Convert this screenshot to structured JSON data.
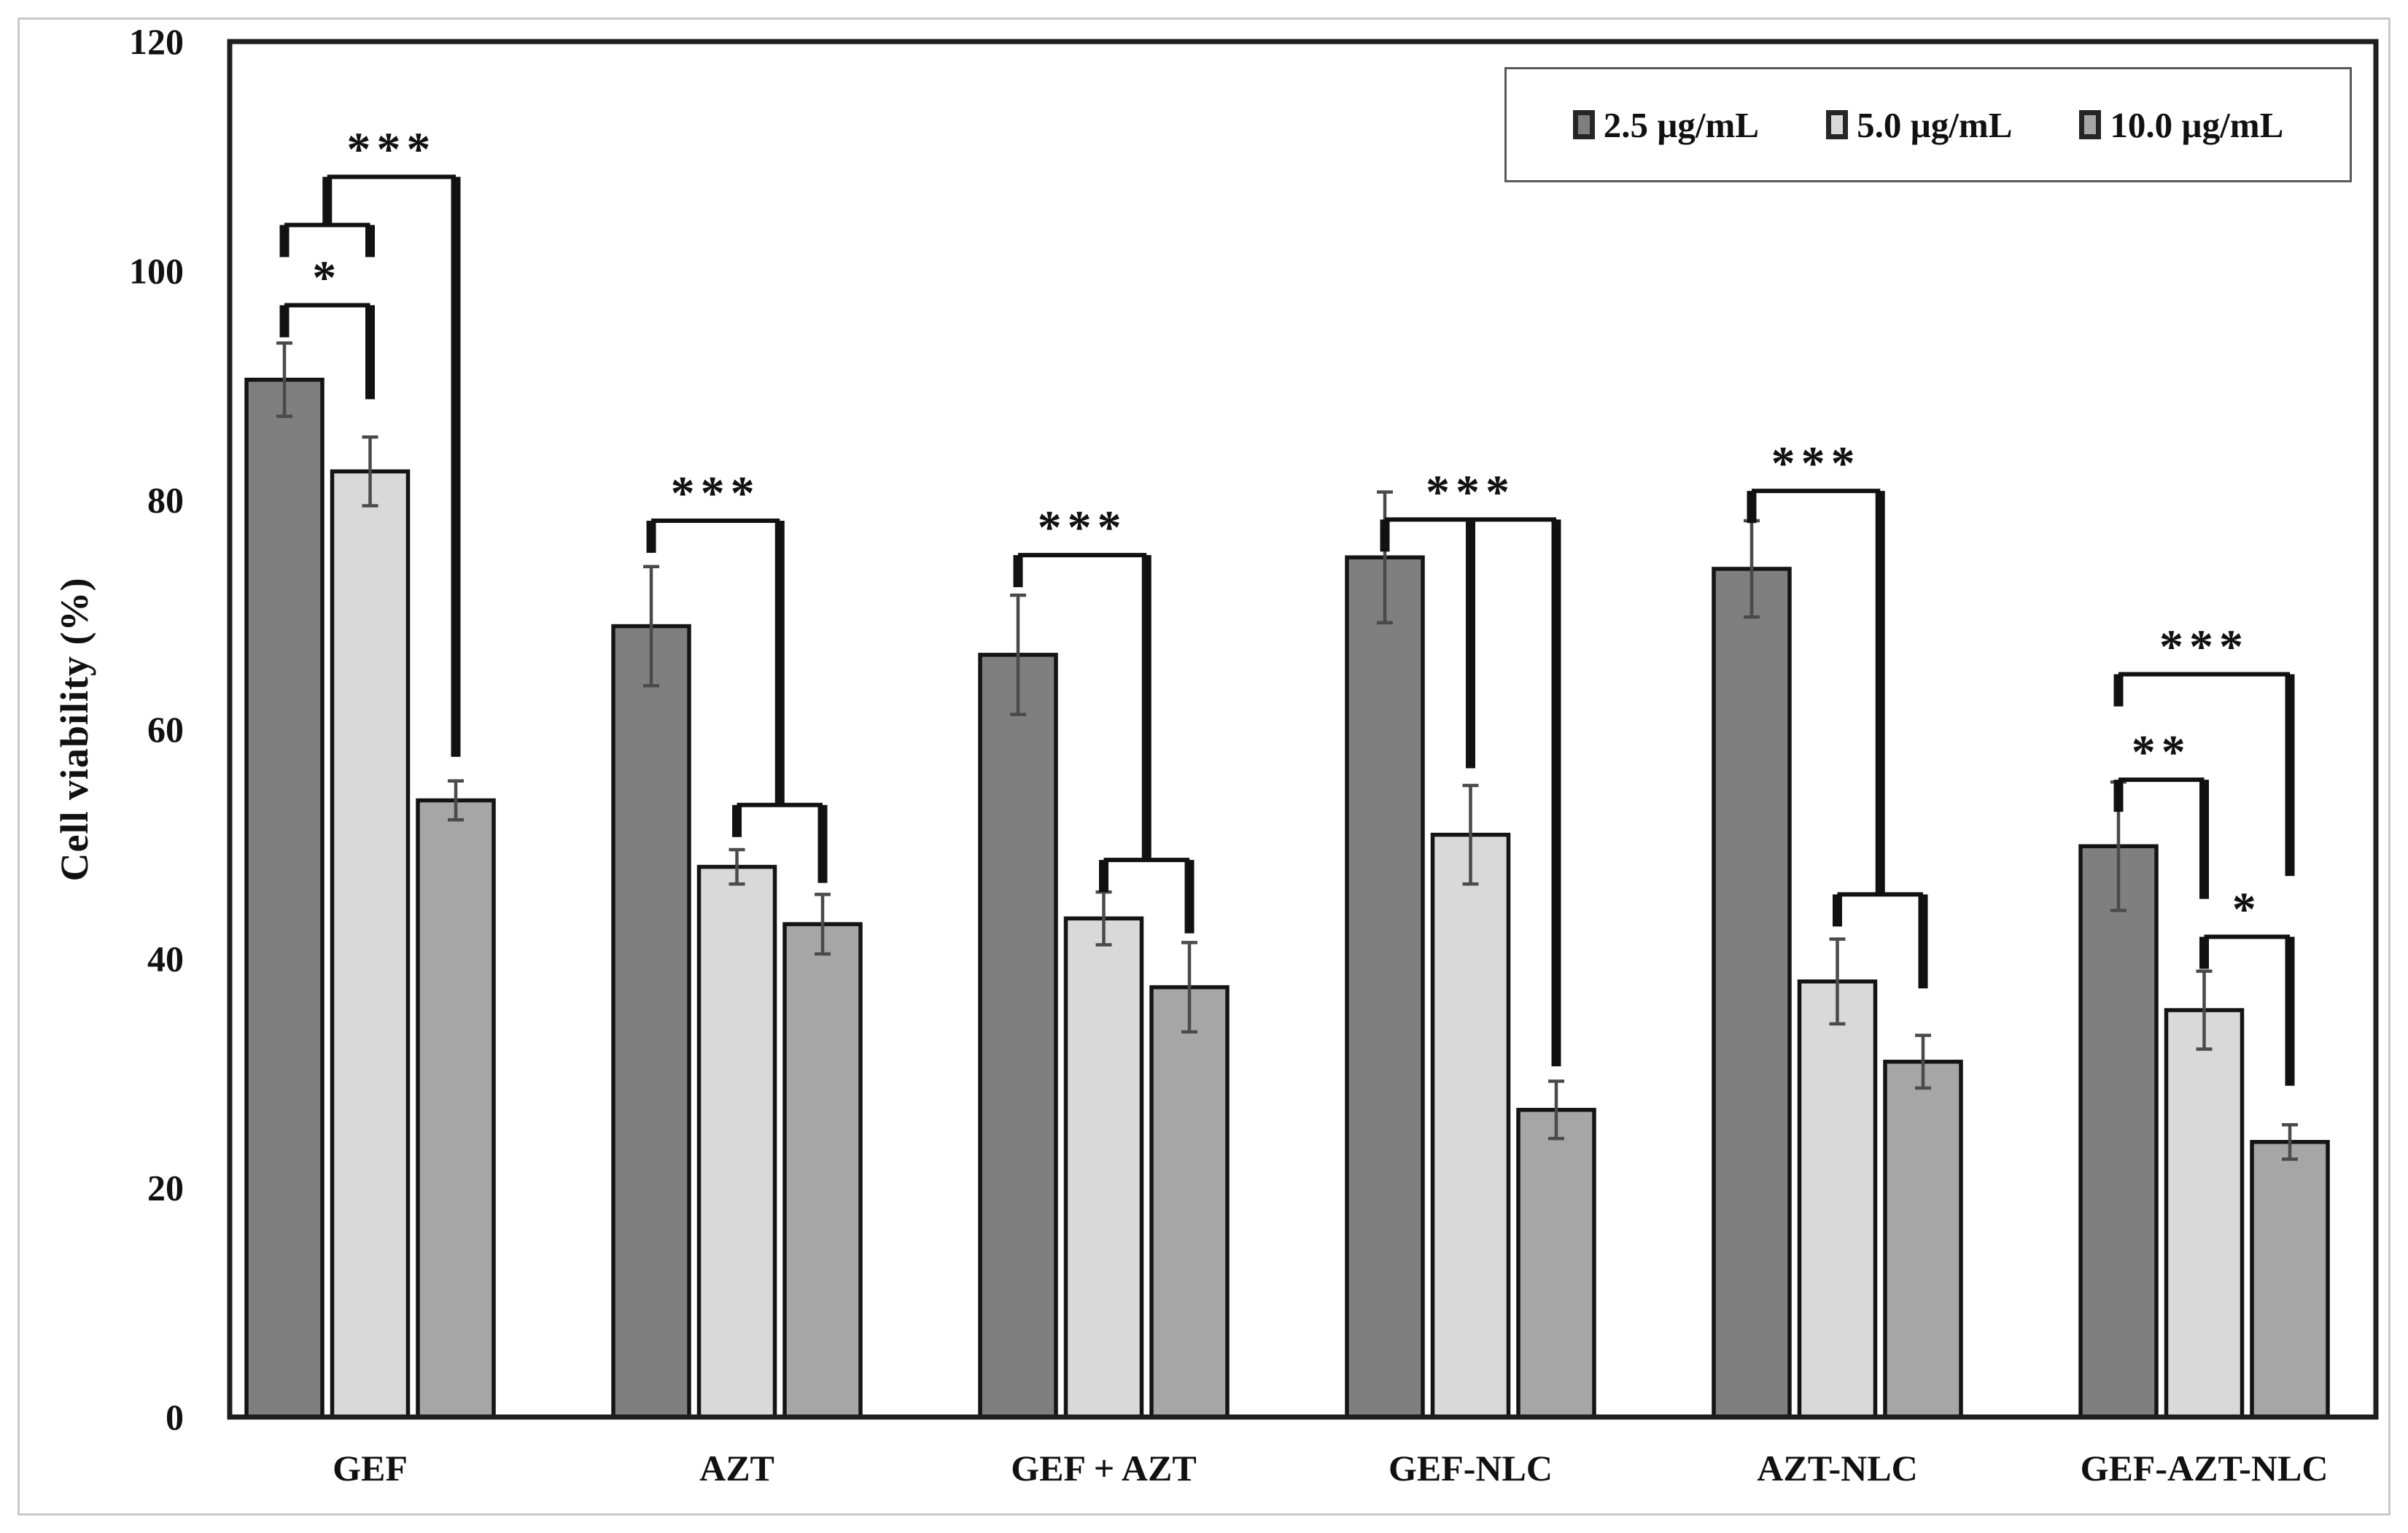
{
  "y_axis": {
    "title": "Cell viability (%)",
    "ticks": [
      0,
      20,
      40,
      60,
      80,
      100,
      120
    ],
    "max": 120
  },
  "legend": {
    "items": [
      {
        "label": "2.5 µg/mL",
        "color": "#7f7f7f"
      },
      {
        "label": "5.0 µg/mL",
        "color": "#d9d9d9"
      },
      {
        "label": "10.0 µg/mL",
        "color": "#a6a6a6"
      }
    ]
  },
  "chart_data": {
    "type": "bar",
    "title": "",
    "xlabel": "",
    "ylabel": "Cell viability (%)",
    "ylim": [
      0,
      120
    ],
    "grid": false,
    "legend_position": "top-right",
    "categories": [
      "GEF",
      "AZT",
      "GEF + AZT",
      "GEF-NLC",
      "AZT-NLC",
      "GEF-AZT-NLC"
    ],
    "series": [
      {
        "name": "2.5 µg/mL",
        "color": "#7f7f7f",
        "values": [
          90.5,
          69.0,
          66.5,
          75.0,
          74.0,
          49.8
        ],
        "errors": [
          3.2,
          5.2,
          5.2,
          5.7,
          4.2,
          5.6
        ]
      },
      {
        "name": "5.0 µg/mL",
        "color": "#d9d9d9",
        "values": [
          82.5,
          48.0,
          43.5,
          50.8,
          38.0,
          35.5
        ],
        "errors": [
          3.0,
          1.5,
          2.3,
          4.3,
          3.7,
          3.4
        ]
      },
      {
        "name": "10.0 µg/mL",
        "color": "#a6a6a6",
        "values": [
          53.8,
          43.0,
          37.5,
          26.8,
          31.0,
          24.0
        ],
        "errors": [
          1.7,
          2.6,
          3.9,
          2.5,
          2.3,
          1.5
        ]
      }
    ],
    "significance": [
      {
        "group": 0,
        "label": "*",
        "kind": "span",
        "a": 0,
        "b": 1,
        "v": 97.0,
        "tick": 2.8,
        "toB": 88.8
      },
      {
        "group": 0,
        "label": "***",
        "kind": "gefTop",
        "subV": 104.0,
        "subTick": 2.8,
        "v": 108.2,
        "c": 2,
        "toC": 57.6
      },
      {
        "group": 1,
        "label": "***",
        "kind": "branch",
        "a": 0,
        "b1": 1,
        "b2": 2,
        "v": 78.2,
        "tick": 2.8,
        "subV": 53.4,
        "subTick": 2.8,
        "toB2": 46.6
      },
      {
        "group": 2,
        "label": "***",
        "kind": "branch",
        "a": 0,
        "b1": 1,
        "b2": 2,
        "v": 75.2,
        "tick": 2.8,
        "subV": 48.6,
        "subTick": 2.8,
        "toB2": 42.2
      },
      {
        "group": 3,
        "label": "***",
        "kind": "trident",
        "a": 0,
        "b": 1,
        "c": 2,
        "v": 78.3,
        "tick": 2.8,
        "toB": 56.6,
        "toC": 30.6
      },
      {
        "group": 4,
        "label": "***",
        "kind": "branch",
        "a": 0,
        "b1": 1,
        "b2": 2,
        "v": 80.8,
        "tick": 2.8,
        "subV": 45.6,
        "subTick": 2.8,
        "toB2": 37.4
      },
      {
        "group": 5,
        "label": "***",
        "kind": "span",
        "a": 0,
        "b": 2,
        "v": 64.8,
        "tick": 2.8,
        "toB": 47.2
      },
      {
        "group": 5,
        "label": "**",
        "kind": "span",
        "a": 0,
        "b": 1,
        "v": 55.6,
        "tick": 2.8,
        "toB": 45.2
      },
      {
        "group": 5,
        "label": "*",
        "kind": "span",
        "a": 1,
        "b": 2,
        "v": 41.9,
        "tick": 2.8,
        "toB": 28.9
      }
    ],
    "error_bar_color": "#4a4a4a",
    "bar_stroke_color": "#141414",
    "bracket_color": "#111111",
    "axis_box_color": "#1f1f1f"
  }
}
